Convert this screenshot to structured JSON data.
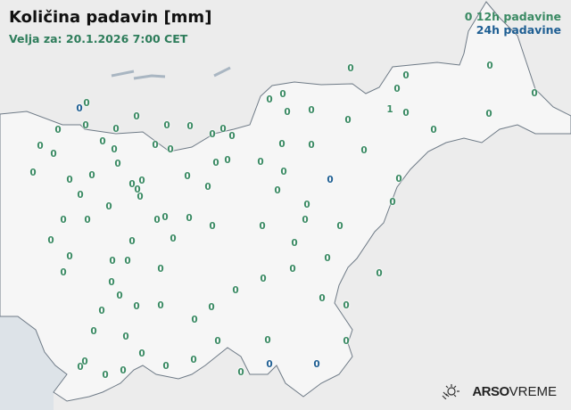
{
  "header": {
    "title": "Količina padavin [mm]",
    "valid_for": "Velja za: 20.1.2026 7:00 CET"
  },
  "legend": {
    "marker": "0",
    "label_12h": "12h padavine",
    "label_24h": "24h padavine"
  },
  "colors": {
    "12h": "#3a8a63",
    "24h": "#1f5f93",
    "land": "#f4f4f4",
    "sea": "#dde3e8",
    "border": "#6e7a86"
  },
  "stations": [
    {
      "value": "0",
      "type": "12h"
    },
    {
      "value": "0",
      "type": "12h"
    },
    {
      "value": "0",
      "type": "12h"
    },
    {
      "value": "0",
      "type": "12h"
    },
    {
      "value": "0",
      "type": "12h"
    },
    {
      "value": "0",
      "type": "12h"
    },
    {
      "value": "0",
      "type": "12h"
    },
    {
      "value": "0",
      "type": "12h"
    },
    {
      "value": "0",
      "type": "12h"
    },
    {
      "value": "0",
      "type": "12h"
    },
    {
      "value": "1",
      "type": "12h"
    },
    {
      "value": "0",
      "type": "12h"
    },
    {
      "value": "0",
      "type": "12h"
    },
    {
      "value": "0",
      "type": "12h"
    },
    {
      "value": "0",
      "type": "12h"
    },
    {
      "value": "0",
      "type": "12h"
    },
    {
      "value": "0",
      "type": "12h"
    },
    {
      "value": "0",
      "type": "12h"
    },
    {
      "value": "0",
      "type": "12h"
    },
    {
      "value": "0",
      "type": "12h"
    },
    {
      "value": "0",
      "type": "12h"
    },
    {
      "value": "0",
      "type": "12h"
    },
    {
      "value": "0",
      "type": "12h"
    },
    {
      "value": "0",
      "type": "12h"
    },
    {
      "value": "0",
      "type": "12h"
    },
    {
      "value": "0",
      "type": "12h"
    },
    {
      "value": "0",
      "type": "12h"
    },
    {
      "value": "0",
      "type": "12h"
    },
    {
      "value": "0",
      "type": "12h"
    },
    {
      "value": "0",
      "type": "12h"
    },
    {
      "value": "0",
      "type": "12h"
    },
    {
      "value": "0",
      "type": "12h"
    },
    {
      "value": "0",
      "type": "12h"
    },
    {
      "value": "0",
      "type": "12h"
    },
    {
      "value": "0",
      "type": "12h"
    },
    {
      "value": "0",
      "type": "12h"
    },
    {
      "value": "0",
      "type": "12h"
    },
    {
      "value": "0",
      "type": "12h"
    },
    {
      "value": "0",
      "type": "12h"
    },
    {
      "value": "0",
      "type": "12h"
    },
    {
      "value": "0",
      "type": "12h"
    },
    {
      "value": "0",
      "type": "12h"
    },
    {
      "value": "0",
      "type": "12h"
    },
    {
      "value": "0",
      "type": "12h"
    },
    {
      "value": "0",
      "type": "12h"
    },
    {
      "value": "0",
      "type": "12h"
    },
    {
      "value": "0",
      "type": "12h"
    },
    {
      "value": "0",
      "type": "12h"
    },
    {
      "value": "0",
      "type": "12h"
    },
    {
      "value": "0",
      "type": "12h"
    },
    {
      "value": "0",
      "type": "12h"
    },
    {
      "value": "0",
      "type": "12h"
    },
    {
      "value": "0",
      "type": "12h"
    },
    {
      "value": "0",
      "type": "12h"
    },
    {
      "value": "0",
      "type": "12h"
    },
    {
      "value": "0",
      "type": "12h"
    },
    {
      "value": "0",
      "type": "12h"
    },
    {
      "value": "0",
      "type": "12h"
    },
    {
      "value": "0",
      "type": "12h"
    },
    {
      "value": "0",
      "type": "12h"
    },
    {
      "value": "0",
      "type": "12h"
    },
    {
      "value": "0",
      "type": "12h"
    },
    {
      "value": "0",
      "type": "12h"
    },
    {
      "value": "0",
      "type": "12h"
    },
    {
      "value": "0",
      "type": "12h"
    },
    {
      "value": "0",
      "type": "12h"
    },
    {
      "value": "0",
      "type": "12h"
    },
    {
      "value": "0",
      "type": "12h"
    },
    {
      "value": "0",
      "type": "12h"
    },
    {
      "value": "0",
      "type": "12h"
    },
    {
      "value": "0",
      "type": "12h"
    },
    {
      "value": "0",
      "type": "12h"
    },
    {
      "value": "0",
      "type": "12h"
    },
    {
      "value": "0",
      "type": "12h"
    },
    {
      "value": "0",
      "type": "12h"
    },
    {
      "value": "0",
      "type": "12h"
    },
    {
      "value": "0",
      "type": "12h"
    },
    {
      "value": "0",
      "type": "12h"
    },
    {
      "value": "0",
      "type": "12h"
    },
    {
      "value": "0",
      "type": "12h"
    },
    {
      "value": "0",
      "type": "12h"
    },
    {
      "value": "0",
      "type": "12h"
    },
    {
      "value": "0",
      "type": "12h"
    },
    {
      "value": "0",
      "type": "12h"
    },
    {
      "value": "0",
      "type": "12h"
    },
    {
      "value": "0",
      "type": "12h"
    },
    {
      "value": "0",
      "type": "12h"
    },
    {
      "value": "0",
      "type": "12h"
    },
    {
      "value": "0",
      "type": "12h"
    },
    {
      "value": "0",
      "type": "12h"
    },
    {
      "value": "0",
      "type": "12h"
    },
    {
      "value": "0",
      "type": "12h"
    },
    {
      "value": "0",
      "type": "12h"
    },
    {
      "value": "0",
      "type": "12h"
    },
    {
      "value": "0",
      "type": "12h"
    },
    {
      "value": "0",
      "type": "12h"
    },
    {
      "value": "0",
      "type": "12h"
    },
    {
      "value": "0",
      "type": "12h"
    },
    {
      "value": "0",
      "type": "24h"
    },
    {
      "value": "0",
      "type": "24h"
    },
    {
      "value": "0",
      "type": "24h"
    },
    {
      "value": "0",
      "type": "24h"
    }
  ],
  "brand": {
    "name_bold": "ARSO",
    "name_light": "VREME",
    "icon": "sun-rain-icon"
  }
}
